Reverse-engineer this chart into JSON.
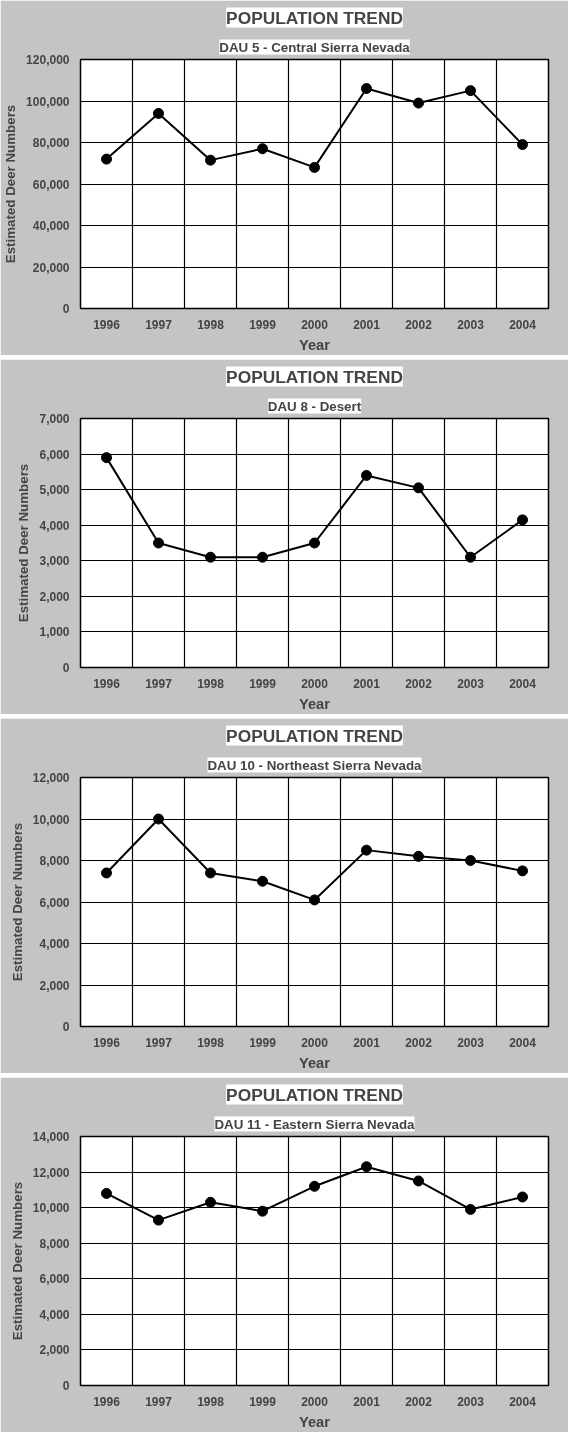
{
  "chart_data": [
    {
      "type": "line",
      "title": "POPULATION TREND",
      "subtitle": "DAU 5 - Central Sierra Nevada",
      "xlabel": "Year",
      "ylabel": "Estimated Deer Numbers",
      "categories": [
        "1996",
        "1997",
        "1998",
        "1999",
        "2000",
        "2001",
        "2002",
        "2003",
        "2004"
      ],
      "series": [
        {
          "color": "#000000",
          "values": [
            72000,
            94000,
            71500,
            77000,
            68000,
            106000,
            99000,
            105000,
            79000
          ]
        }
      ],
      "ylim": [
        0,
        120000
      ],
      "yticks": [
        0,
        {
          "value": 20000,
          "label": "20,000"
        },
        {
          "value": 40000,
          "label": "40,000"
        },
        {
          "value": 60000,
          "label": "60,000"
        },
        {
          "value": 80000,
          "label": "80,000"
        },
        {
          "value": 100000,
          "label": "100,000"
        },
        {
          "value": 120000,
          "label": "120,000"
        }
      ],
      "grid": true,
      "marker": "circle",
      "line_style": "solid"
    },
    {
      "type": "line",
      "title": "POPULATION TREND",
      "subtitle": "DAU 8 - Desert",
      "xlabel": "Year",
      "ylabel": "Estimated Deer Numbers",
      "categories": [
        "1996",
        "1997",
        "1998",
        "1999",
        "2000",
        "2001",
        "2002",
        "2003",
        "2004"
      ],
      "series": [
        {
          "color": "#000000",
          "values": [
            5900,
            3500,
            3100,
            3100,
            3500,
            5400,
            5050,
            3100,
            4150
          ]
        }
      ],
      "ylim": [
        0,
        7000
      ],
      "yticks": [
        0,
        {
          "value": 1000,
          "label": "1,000"
        },
        {
          "value": 2000,
          "label": "2,000"
        },
        {
          "value": 3000,
          "label": "3,000"
        },
        {
          "value": 4000,
          "label": "4,000"
        },
        {
          "value": 5000,
          "label": "5,000"
        },
        {
          "value": 6000,
          "label": "6,000"
        },
        {
          "value": 7000,
          "label": "7,000"
        }
      ],
      "grid": true,
      "marker": "circle",
      "line_style": "solid"
    },
    {
      "type": "line",
      "title": "POPULATION TREND",
      "subtitle": "DAU 10 - Northeast Sierra Nevada",
      "xlabel": "Year",
      "ylabel": "Estimated Deer Numbers",
      "categories": [
        "1996",
        "1997",
        "1998",
        "1999",
        "2000",
        "2001",
        "2002",
        "2003",
        "2004"
      ],
      "series": [
        {
          "color": "#000000",
          "values": [
            7400,
            10000,
            7400,
            7000,
            6100,
            8500,
            8200,
            8000,
            7500
          ]
        }
      ],
      "ylim": [
        0,
        12000
      ],
      "yticks": [
        0,
        {
          "value": 2000,
          "label": "2,000"
        },
        {
          "value": 4000,
          "label": "4,000"
        },
        {
          "value": 6000,
          "label": "6,000"
        },
        {
          "value": 8000,
          "label": "8,000"
        },
        {
          "value": 10000,
          "label": "10,000"
        },
        {
          "value": 12000,
          "label": "12,000"
        }
      ],
      "grid": true,
      "marker": "circle",
      "line_style": "solid"
    },
    {
      "type": "line",
      "title": "POPULATION TREND",
      "subtitle": "DAU 11 - Eastern Sierra Nevada",
      "xlabel": "Year",
      "ylabel": "Estimated Deer Numbers",
      "categories": [
        "1996",
        "1997",
        "1998",
        "1999",
        "2000",
        "2001",
        "2002",
        "2003",
        "2004"
      ],
      "series": [
        {
          "color": "#000000",
          "values": [
            10800,
            9300,
            10300,
            9800,
            11200,
            12300,
            11500,
            9900,
            10600
          ]
        }
      ],
      "ylim": [
        0,
        14000
      ],
      "yticks": [
        0,
        {
          "value": 2000,
          "label": "2,000"
        },
        {
          "value": 4000,
          "label": "4,000"
        },
        {
          "value": 6000,
          "label": "6,000"
        },
        {
          "value": 8000,
          "label": "8,000"
        },
        {
          "value": 10000,
          "label": "10,000"
        },
        {
          "value": 12000,
          "label": "12,000"
        },
        {
          "value": 14000,
          "label": "14,000"
        }
      ],
      "grid": true,
      "marker": "circle",
      "line_style": "solid"
    }
  ]
}
